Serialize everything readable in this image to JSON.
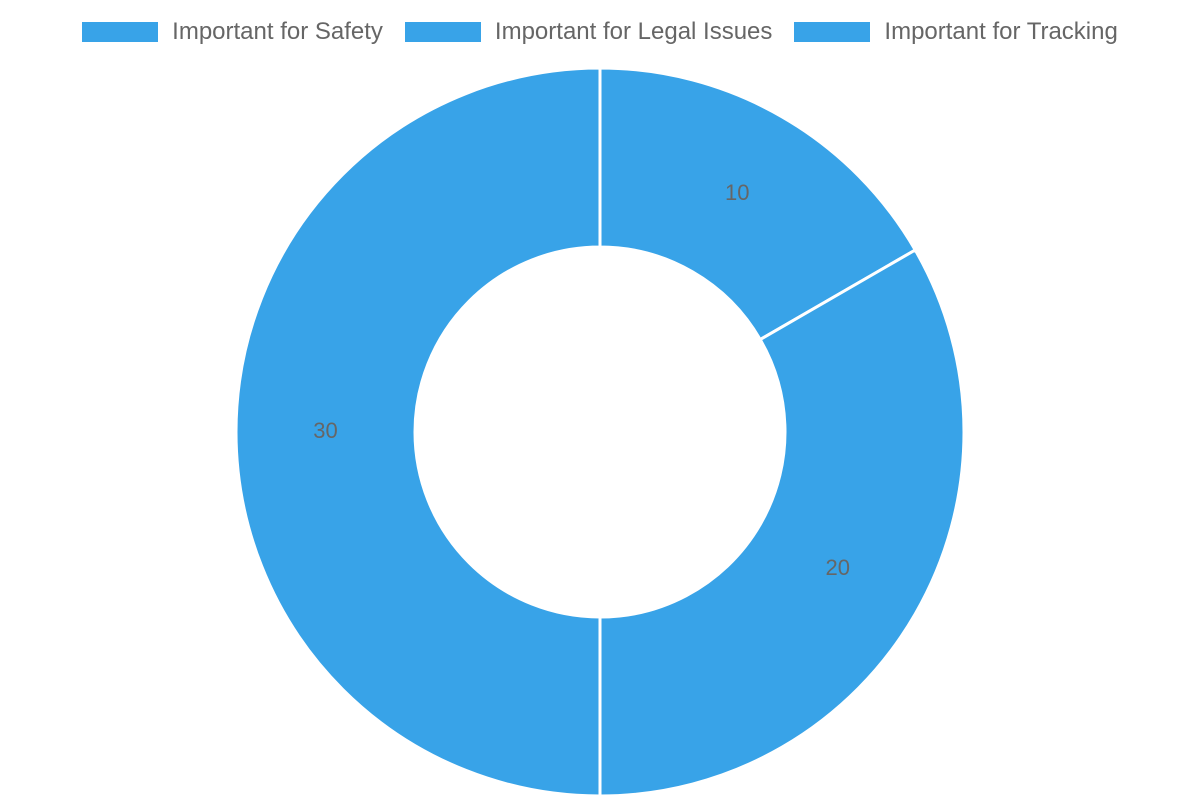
{
  "chart_data": {
    "type": "pie",
    "variant": "doughnut",
    "title": "",
    "categories": [
      "Important for Safety",
      "Important for Legal Issues",
      "Important for Tracking"
    ],
    "values": [
      10,
      20,
      30
    ],
    "colors": [
      "#38a3e8",
      "#38a3e8",
      "#38a3e8"
    ],
    "border_color": "#ffffff",
    "legend_position": "top",
    "data_labels": true
  }
}
